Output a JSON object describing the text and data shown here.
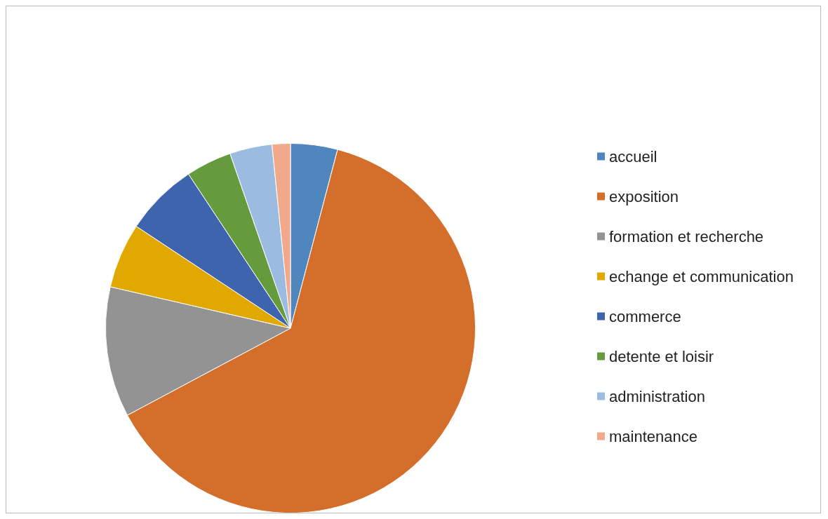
{
  "chart_data": {
    "type": "pie",
    "legend": "right",
    "categories": [
      "accueil",
      "exposition",
      "formation et recherche",
      "echange et communication",
      "commerce",
      "detente et loisir",
      "administration",
      "maintenance"
    ],
    "values": [
      4.1,
      63.1,
      11.4,
      5.7,
      6.4,
      4.0,
      3.7,
      1.6
    ],
    "colors": [
      "#4f86bd",
      "#d46e2b",
      "#939393",
      "#e0a800",
      "#3d64ad",
      "#659a3d",
      "#9bbbe0",
      "#f2a98b"
    ]
  }
}
